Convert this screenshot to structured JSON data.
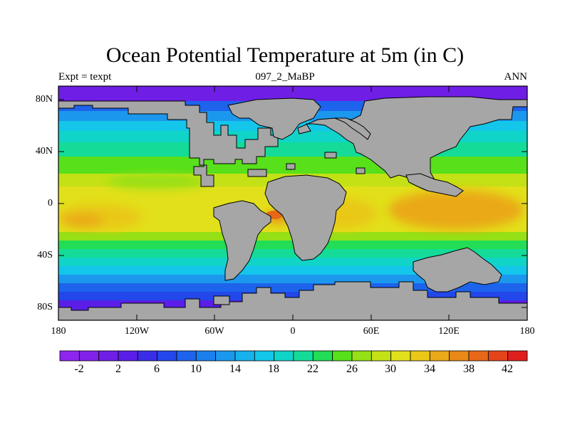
{
  "title": "Ocean Potential Temperature at 5m (in C)",
  "subtitle_left": "Expt = texpt",
  "subtitle_center": "097_2_MaBP",
  "subtitle_right": "ANN",
  "lat_labels": [
    "80N",
    "40N",
    "0",
    "40S",
    "80S"
  ],
  "lon_labels": [
    "180",
    "120W",
    "60W",
    "0",
    "60E",
    "120E",
    "180"
  ],
  "colorbar_labels": [
    "-2",
    "2",
    "6",
    "10",
    "14",
    "18",
    "22",
    "26",
    "30",
    "34",
    "38",
    "42"
  ],
  "colorbar_colors": [
    "#8f26ef",
    "#8121ea",
    "#6f1ee6",
    "#5a1ee8",
    "#3a2de8",
    "#2247ea",
    "#1d63ec",
    "#1c7fee",
    "#1b98ee",
    "#17b1ec",
    "#13c6ea",
    "#11d4c8",
    "#14dc98",
    "#22dd55",
    "#58e01a",
    "#95e016",
    "#c4e116",
    "#e2e01a",
    "#e9c817",
    "#eaa919",
    "#e88918",
    "#e66818",
    "#e4441a",
    "#df1f1e"
  ],
  "land_color": "#a6a6a6",
  "chart_data": {
    "type": "heatmap",
    "title": "Ocean Potential Temperature at 5m (in C)",
    "variable": "Ocean Potential Temperature at 5m",
    "units": "C",
    "x_ticks": [
      "180",
      "120W",
      "60W",
      "0",
      "60E",
      "120E",
      "180"
    ],
    "y_ticks": [
      "80N",
      "40N",
      "0",
      "40S",
      "80S"
    ],
    "x_range": [
      -180,
      180
    ],
    "y_range": [
      -90,
      90
    ],
    "color_levels": [
      -4,
      -2,
      0,
      2,
      4,
      6,
      8,
      10,
      12,
      14,
      16,
      18,
      20,
      22,
      24,
      26,
      28,
      30,
      32,
      34,
      36,
      38,
      40,
      42,
      44
    ],
    "zonal_mean_profile": [
      {
        "lat": 85,
        "value": -1
      },
      {
        "lat": 70,
        "value": 2
      },
      {
        "lat": 55,
        "value": 12
      },
      {
        "lat": 40,
        "value": 20
      },
      {
        "lat": 25,
        "value": 27
      },
      {
        "lat": 10,
        "value": 31
      },
      {
        "lat": 0,
        "value": 33
      },
      {
        "lat": -10,
        "value": 32
      },
      {
        "lat": -25,
        "value": 28
      },
      {
        "lat": -40,
        "value": 22
      },
      {
        "lat": -55,
        "value": 14
      },
      {
        "lat": -70,
        "value": 8
      },
      {
        "lat": -85,
        "value": 0
      }
    ]
  }
}
